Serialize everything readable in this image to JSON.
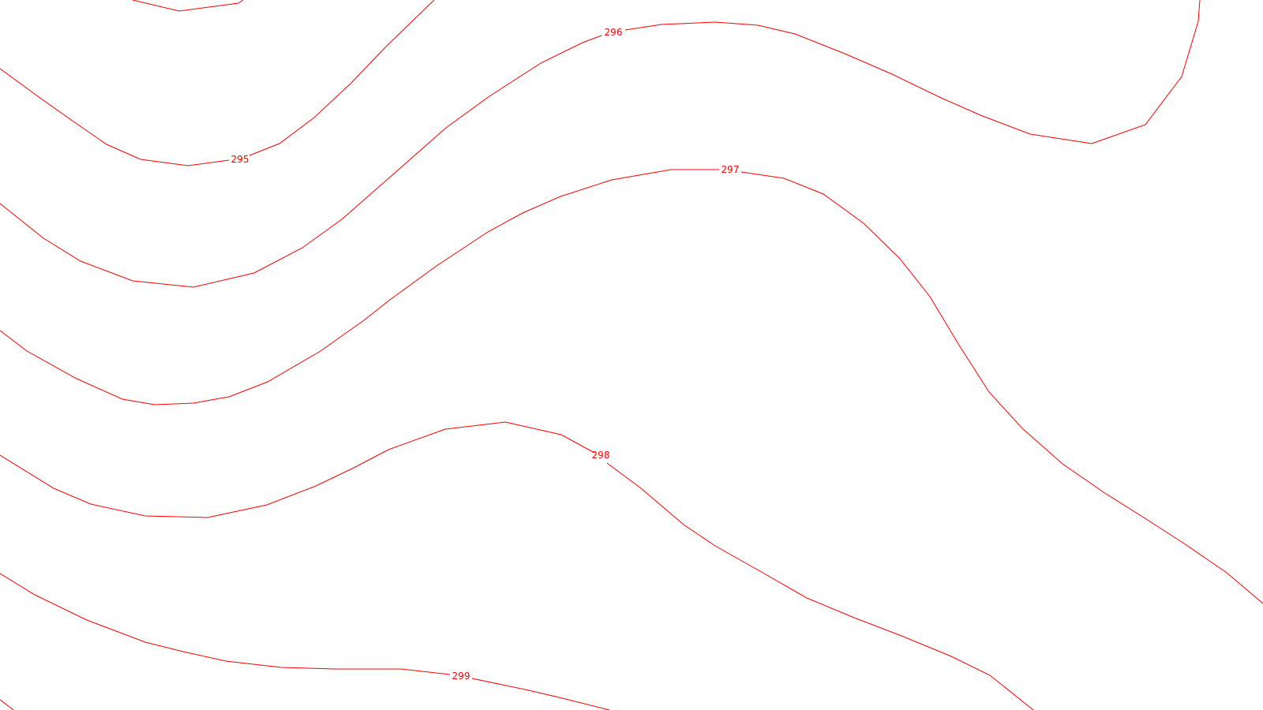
{
  "map": {
    "line_color": "#ff0000",
    "background_color": "#ffffff",
    "contour_labels": [
      {
        "id": "295",
        "text": "295"
      },
      {
        "id": "296",
        "text": "296"
      },
      {
        "id": "297",
        "text": "297"
      },
      {
        "id": "298",
        "text": "298"
      },
      {
        "id": "299",
        "text": "299"
      }
    ]
  }
}
